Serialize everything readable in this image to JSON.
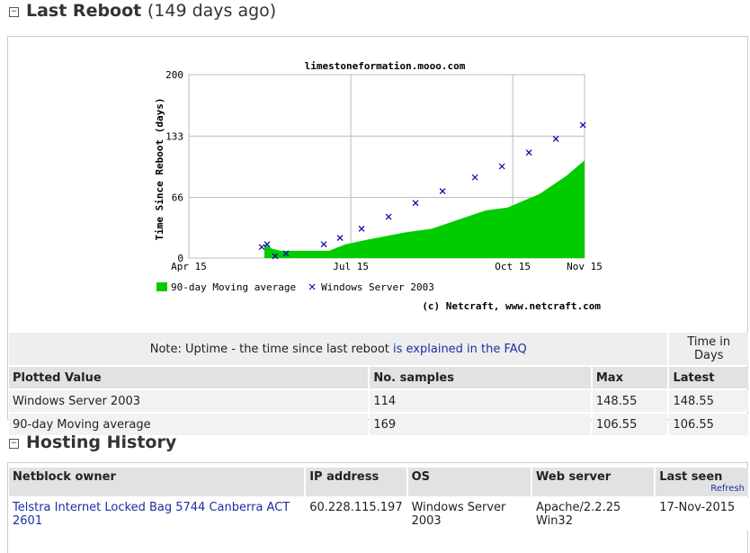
{
  "reboot_section": {
    "title": "Last Reboot",
    "subtitle": "(149 days ago)"
  },
  "chart_data": {
    "type": "combo",
    "title": "limestoneformation.mooo.com",
    "y_label": "Time Since Reboot (days)",
    "credit": "(c) Netcraft, www.netcraft.com",
    "xlim": [
      4,
      11.33
    ],
    "xticks": [
      {
        "value": 4,
        "label": "Apr 15"
      },
      {
        "value": 7,
        "label": "Jul 15"
      },
      {
        "value": 10,
        "label": "Oct 15"
      },
      {
        "value": 11.33,
        "label": "Nov 15"
      }
    ],
    "ylim": [
      0,
      200
    ],
    "yticks": [
      0,
      66,
      133,
      200
    ],
    "grid": true,
    "series": [
      {
        "name": "90-day Moving average",
        "type": "area",
        "color": "#00cc00",
        "x": [
          5.4,
          5.55,
          5.7,
          6.6,
          6.9,
          7.3,
          8.0,
          8.5,
          9.0,
          9.5,
          9.9,
          10.5,
          11.0,
          11.33
        ],
        "values": [
          15,
          10,
          8,
          8,
          15,
          20,
          28,
          32,
          42,
          52,
          55,
          70,
          90,
          106.55
        ]
      },
      {
        "name": "Windows Server 2003",
        "type": "scatter",
        "color": "#0000aa",
        "x": [
          5.35,
          5.45,
          5.6,
          5.8,
          6.5,
          6.8,
          7.2,
          7.7,
          8.2,
          8.7,
          9.3,
          9.8,
          10.3,
          10.8,
          11.3
        ],
        "values": [
          12,
          15,
          2,
          5,
          15,
          22,
          32,
          45,
          60,
          73,
          88,
          100,
          115,
          130,
          145
        ]
      }
    ]
  },
  "uptime_table": {
    "note": "Note: Uptime - the time since last reboot",
    "note_link": "is explained in the FAQ",
    "group_header": "Time in Days",
    "headers": [
      "Plotted Value",
      "No. samples",
      "Max",
      "Latest"
    ],
    "rows": [
      [
        "Windows Server 2003",
        "114",
        "148.55",
        "148.55"
      ],
      [
        "90-day Moving average",
        "169",
        "106.55",
        "106.55"
      ]
    ]
  },
  "hosting_section": {
    "title": "Hosting History"
  },
  "hosting_table": {
    "headers": [
      "Netblock owner",
      "IP address",
      "OS",
      "Web server",
      "Last seen"
    ],
    "refresh": "Refresh",
    "rows": [
      [
        "Telstra Internet Locked Bag 5744 Canberra ACT 2601",
        "60.228.115.197",
        "Windows Server 2003",
        "Apache/2.2.25 Win32",
        "17-Nov-2015"
      ]
    ]
  }
}
